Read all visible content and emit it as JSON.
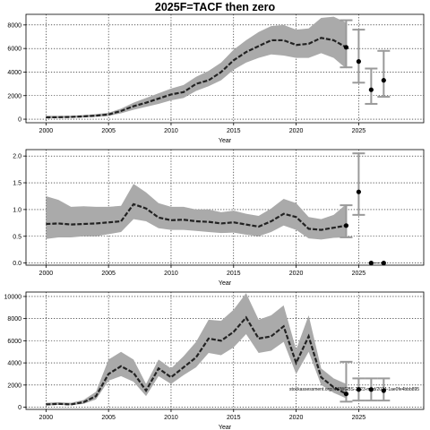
{
  "title": "2025F=TACF then zero",
  "watermark": "stockassessment.org:NWWGBS-2023-mod/2024-1ae0fe4bbb895",
  "chart_data": [
    {
      "type": "line",
      "name": "top",
      "xlabel": "Year",
      "ylabel": "",
      "xlim": [
        1998.4,
        2030.2
      ],
      "ylim": [
        -300,
        8900
      ],
      "xticks": [
        2000,
        2005,
        2010,
        2015,
        2020,
        2025
      ],
      "yticks": [
        0,
        2000,
        4000,
        6000,
        8000
      ],
      "grid": true,
      "x": [
        2000,
        2001,
        2002,
        2003,
        2004,
        2005,
        2006,
        2007,
        2008,
        2009,
        2010,
        2011,
        2012,
        2013,
        2014,
        2015,
        2016,
        2017,
        2018,
        2019,
        2020,
        2021,
        2022,
        2023,
        2024
      ],
      "estimate": [
        150,
        170,
        190,
        240,
        300,
        400,
        700,
        1100,
        1400,
        1750,
        2100,
        2300,
        3000,
        3300,
        4000,
        5000,
        5700,
        6200,
        6700,
        6700,
        6300,
        6400,
        6900,
        6700,
        6100
      ],
      "upper": [
        300,
        280,
        300,
        350,
        430,
        550,
        900,
        1400,
        1800,
        2200,
        2600,
        2900,
        3600,
        4100,
        4800,
        5900,
        6700,
        7400,
        7900,
        8000,
        7600,
        7700,
        8600,
        8700,
        8200
      ],
      "lower": [
        80,
        90,
        120,
        150,
        200,
        280,
        500,
        800,
        1050,
        1300,
        1600,
        1800,
        2400,
        2800,
        3300,
        4200,
        4800,
        5200,
        5500,
        5400,
        5200,
        5200,
        5600,
        5200,
        4300
      ],
      "projection": [
        {
          "x": 2024,
          "value": 6100,
          "lower": 4400,
          "upper": 8400
        },
        {
          "x": 2025,
          "value": 4900,
          "lower": 3100,
          "upper": 7600
        },
        {
          "x": 2026,
          "value": 2500,
          "lower": 1300,
          "upper": 4300
        },
        {
          "x": 2027,
          "value": 3300,
          "lower": 1900,
          "upper": 5800
        }
      ]
    },
    {
      "type": "line",
      "name": "middle",
      "xlabel": "Year",
      "ylabel": "",
      "xlim": [
        1998.4,
        2030.2
      ],
      "ylim": [
        -0.04,
        2.12
      ],
      "xticks": [
        2000,
        2005,
        2010,
        2015,
        2020,
        2025
      ],
      "yticks": [
        0.0,
        0.5,
        1.0,
        1.5,
        2.0
      ],
      "ytick_labels": [
        "0.0",
        "0.5",
        "1.0",
        "1.5",
        "2.0"
      ],
      "grid": true,
      "x": [
        2000,
        2001,
        2002,
        2003,
        2004,
        2005,
        2006,
        2007,
        2008,
        2009,
        2010,
        2011,
        2012,
        2013,
        2014,
        2015,
        2016,
        2017,
        2018,
        2019,
        2020,
        2021,
        2022,
        2023,
        2024
      ],
      "estimate": [
        0.73,
        0.74,
        0.72,
        0.73,
        0.74,
        0.76,
        0.78,
        1.1,
        1.02,
        0.85,
        0.8,
        0.81,
        0.78,
        0.77,
        0.74,
        0.76,
        0.72,
        0.68,
        0.78,
        0.92,
        0.86,
        0.64,
        0.62,
        0.66,
        0.7
      ],
      "upper": [
        1.25,
        1.18,
        1.05,
        1.06,
        1.05,
        1.05,
        1.07,
        1.48,
        1.32,
        1.12,
        1.05,
        1.05,
        1.0,
        1.0,
        0.95,
        0.98,
        0.92,
        0.88,
        1.02,
        1.2,
        1.12,
        0.86,
        0.82,
        0.9,
        1.1
      ],
      "lower": [
        0.45,
        0.48,
        0.48,
        0.5,
        0.5,
        0.54,
        0.58,
        0.82,
        0.78,
        0.65,
        0.62,
        0.62,
        0.6,
        0.58,
        0.56,
        0.57,
        0.53,
        0.5,
        0.58,
        0.7,
        0.62,
        0.46,
        0.44,
        0.47,
        0.48
      ],
      "projection": [
        {
          "x": 2024,
          "value": 0.7,
          "lower": 0.48,
          "upper": 1.08
        },
        {
          "x": 2025,
          "value": 1.33,
          "lower": 0.9,
          "upper": 2.05
        },
        {
          "x": 2026,
          "value": 0.0,
          "lower": 0.0,
          "upper": 0.0
        },
        {
          "x": 2027,
          "value": 0.0,
          "lower": 0.0,
          "upper": 0.0
        }
      ]
    },
    {
      "type": "line",
      "name": "bottom",
      "xlabel": "Year",
      "ylabel": "",
      "xlim": [
        1998.4,
        2030.2
      ],
      "ylim": [
        -200,
        10400
      ],
      "xticks": [
        2000,
        2005,
        2010,
        2015,
        2020,
        2025
      ],
      "yticks": [
        0,
        2000,
        4000,
        6000,
        8000,
        10000
      ],
      "grid": true,
      "x": [
        2000,
        2001,
        2002,
        2003,
        2004,
        2005,
        2006,
        2007,
        2008,
        2009,
        2010,
        2011,
        2012,
        2013,
        2014,
        2015,
        2016,
        2017,
        2018,
        2019,
        2020,
        2021,
        2022,
        2023,
        2024
      ],
      "estimate": [
        250,
        300,
        250,
        450,
        1000,
        3000,
        3700,
        3100,
        1500,
        3500,
        2700,
        3600,
        4500,
        6200,
        6000,
        6800,
        8100,
        6200,
        6400,
        7300,
        4000,
        6400,
        2700,
        1800,
        1200
      ],
      "upper": [
        400,
        450,
        400,
        650,
        1400,
        4300,
        5000,
        4300,
        2100,
        4300,
        3500,
        4600,
        5900,
        7900,
        7800,
        8800,
        10300,
        7900,
        8300,
        9200,
        5200,
        8300,
        3500,
        2600,
        2100
      ],
      "lower": [
        150,
        200,
        180,
        300,
        700,
        2400,
        2800,
        2300,
        1000,
        2800,
        2100,
        2900,
        3600,
        4900,
        4700,
        5400,
        6600,
        4900,
        5100,
        5900,
        3000,
        5000,
        2000,
        1300,
        800
      ],
      "projection": [
        {
          "x": 2024,
          "value": 1200,
          "lower": 500,
          "upper": 4100
        },
        {
          "x": 2025,
          "value": 1600,
          "lower": 600,
          "upper": 2600
        },
        {
          "x": 2026,
          "value": 1600,
          "lower": 600,
          "upper": 2600
        },
        {
          "x": 2027,
          "value": 1500,
          "lower": 600,
          "upper": 2600
        }
      ]
    }
  ]
}
